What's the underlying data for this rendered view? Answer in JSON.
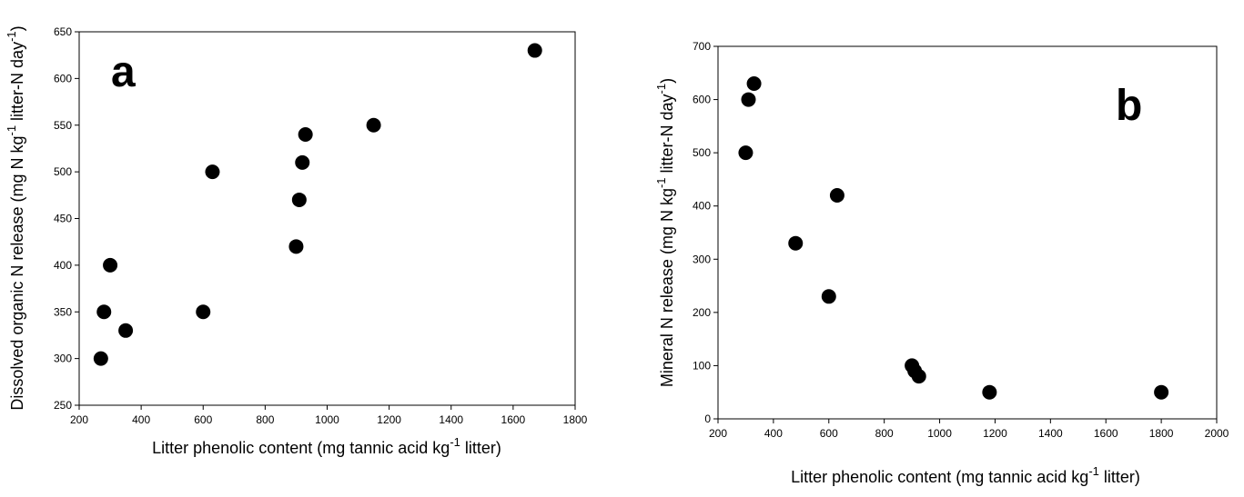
{
  "chart_data": [
    {
      "type": "scatter",
      "panel_label": "a",
      "xlabel_main": "Litter phenolic content (mg tannic acid kg",
      "xlabel_sup": "-1",
      "xlabel_end": " litter)",
      "ylabel_main": "Dissolved organic N release (mg N kg",
      "ylabel_sup1": "-1",
      "ylabel_mid": " litter-N day",
      "ylabel_sup2": "-1",
      "ylabel_end": ")",
      "xlim": [
        200,
        1800
      ],
      "ylim": [
        250,
        650
      ],
      "xticks": [
        "200",
        "400",
        "600",
        "800",
        "1000",
        "1200",
        "1400",
        "1600",
        "1800"
      ],
      "yticks": [
        "250",
        "300",
        "350",
        "400",
        "450",
        "500",
        "550",
        "600",
        "650"
      ],
      "grid": false,
      "points": [
        {
          "x": 270,
          "y": 300
        },
        {
          "x": 280,
          "y": 350
        },
        {
          "x": 300,
          "y": 400
        },
        {
          "x": 350,
          "y": 330
        },
        {
          "x": 600,
          "y": 350
        },
        {
          "x": 630,
          "y": 500
        },
        {
          "x": 900,
          "y": 420
        },
        {
          "x": 910,
          "y": 470
        },
        {
          "x": 920,
          "y": 510
        },
        {
          "x": 930,
          "y": 540
        },
        {
          "x": 1150,
          "y": 550
        },
        {
          "x": 1670,
          "y": 630
        }
      ]
    },
    {
      "type": "scatter",
      "panel_label": "b",
      "xlabel_main": "Litter phenolic content (mg tannic acid kg",
      "xlabel_sup": "-1",
      "xlabel_end": " litter)",
      "ylabel_main": "Mineral N release (mg N kg",
      "ylabel_sup1": "-1",
      "ylabel_mid": " litter-N day",
      "ylabel_sup2": "-1",
      "ylabel_end": ")",
      "xlim": [
        200,
        2000
      ],
      "ylim": [
        0,
        700
      ],
      "xticks": [
        "200",
        "400",
        "600",
        "800",
        "1000",
        "1200",
        "1400",
        "1600",
        "1800",
        "2000"
      ],
      "yticks": [
        "0",
        "100",
        "200",
        "300",
        "400",
        "500",
        "600",
        "700"
      ],
      "grid": false,
      "points": [
        {
          "x": 300,
          "y": 500
        },
        {
          "x": 310,
          "y": 600
        },
        {
          "x": 330,
          "y": 630
        },
        {
          "x": 480,
          "y": 330
        },
        {
          "x": 600,
          "y": 230
        },
        {
          "x": 630,
          "y": 420
        },
        {
          "x": 900,
          "y": 100
        },
        {
          "x": 910,
          "y": 90
        },
        {
          "x": 925,
          "y": 80
        },
        {
          "x": 1180,
          "y": 50
        },
        {
          "x": 1800,
          "y": 50
        }
      ]
    }
  ]
}
